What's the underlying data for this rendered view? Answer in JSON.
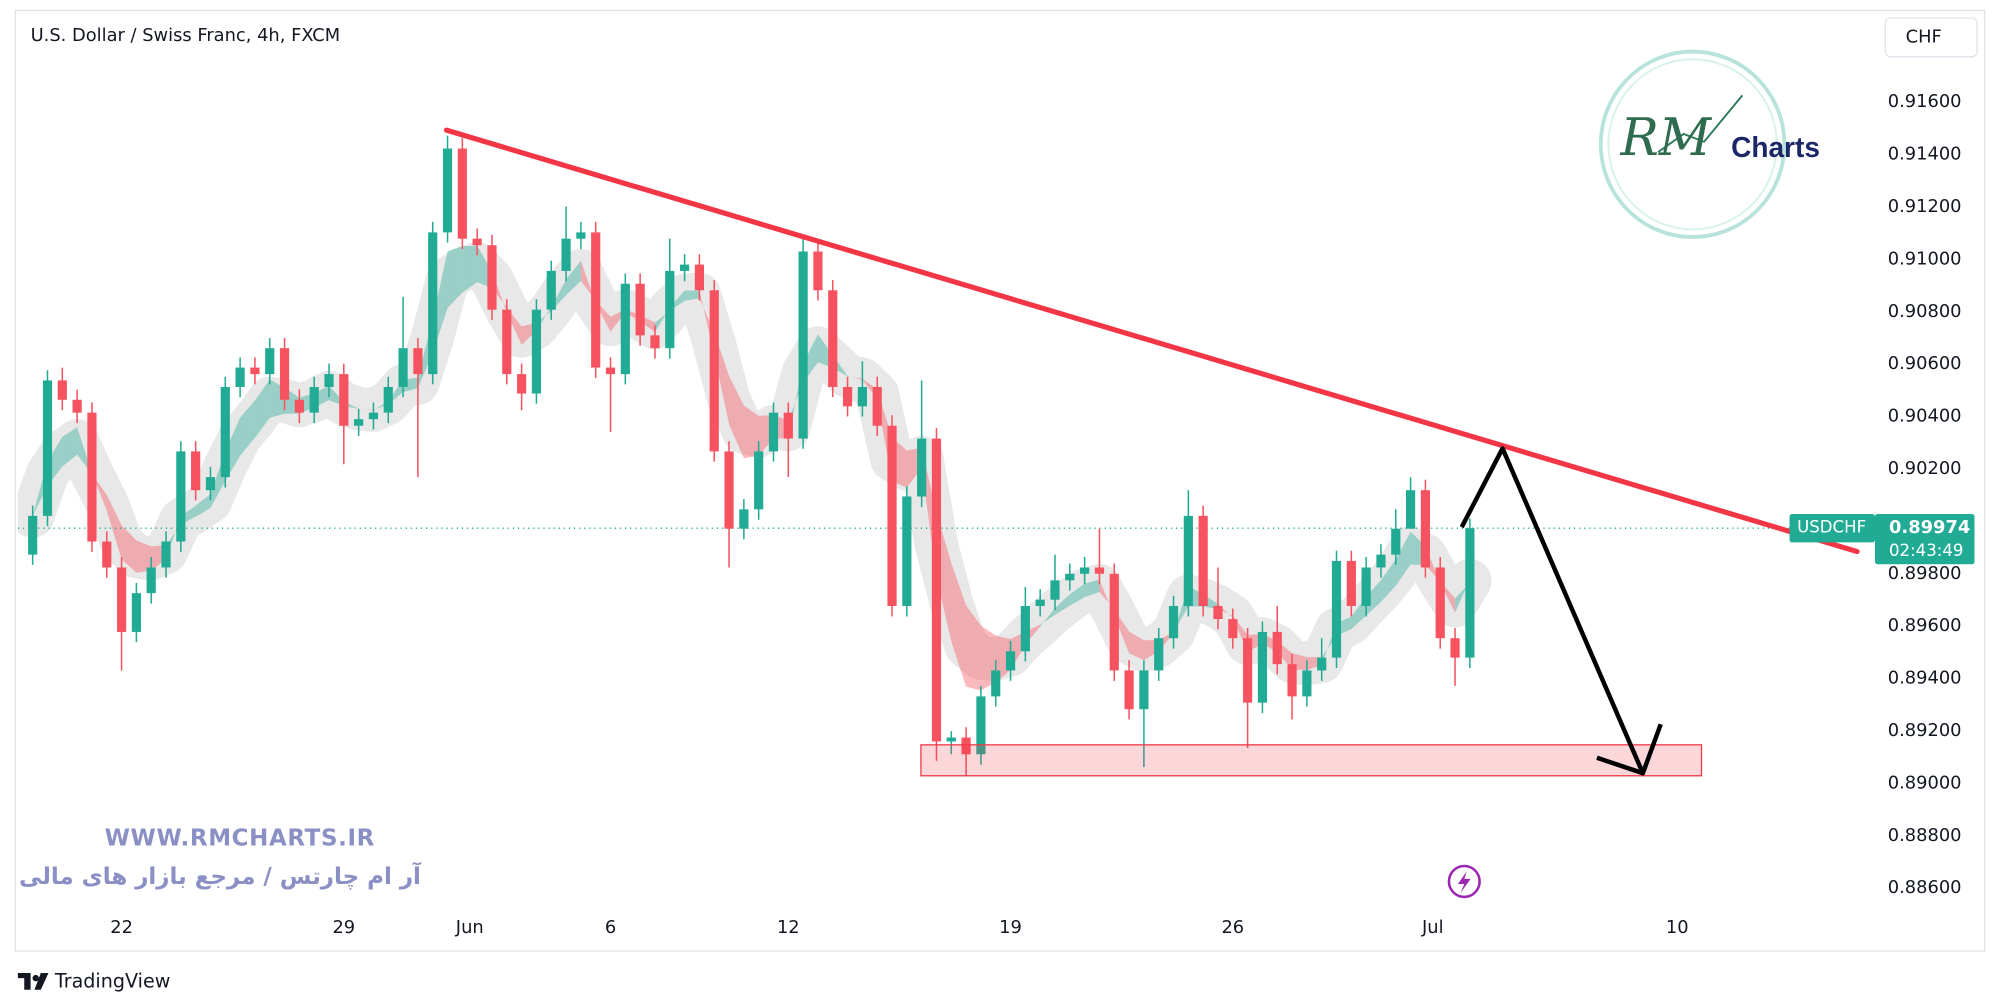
{
  "chart_data": {
    "type": "candlestick",
    "title": "U.S. Dollar / Swiss Franc, 4h, FXCM",
    "currency": "CHF",
    "symbol": "USDCHF",
    "countdown": "02:43:49",
    "up_color": "#22ab94",
    "down_color": "#f7525f",
    "grid": false,
    "xlim": [
      -1,
      124
    ],
    "xticks": [
      {
        "value": 6,
        "label": "22"
      },
      {
        "value": 21,
        "label": "29"
      },
      {
        "value": 29.5,
        "label": "Jun"
      },
      {
        "value": 39,
        "label": "6"
      },
      {
        "value": 51,
        "label": "12"
      },
      {
        "value": 66,
        "label": "19"
      },
      {
        "value": 81,
        "label": "26"
      },
      {
        "value": 94.5,
        "label": "Jul"
      },
      {
        "value": 111,
        "label": "10"
      }
    ],
    "ylim": [
      0.8836,
      0.9199
    ],
    "yticks": [
      {
        "value": 0.886,
        "label": "0.88600"
      },
      {
        "value": 0.888,
        "label": "0.88800"
      },
      {
        "value": 0.89,
        "label": "0.89000"
      },
      {
        "value": 0.892,
        "label": "0.89200"
      },
      {
        "value": 0.894,
        "label": "0.89400"
      },
      {
        "value": 0.896,
        "label": "0.89600"
      },
      {
        "value": 0.898,
        "label": "0.89800"
      },
      {
        "value": 0.902,
        "label": "0.90200"
      },
      {
        "value": 0.904,
        "label": "0.90400"
      },
      {
        "value": 0.906,
        "label": "0.90600"
      },
      {
        "value": 0.908,
        "label": "0.90800"
      },
      {
        "value": 0.91,
        "label": "0.91000"
      },
      {
        "value": 0.912,
        "label": "0.91200"
      },
      {
        "value": 0.914,
        "label": "0.91400"
      },
      {
        "value": 0.916,
        "label": "0.91600"
      }
    ],
    "ohlc": [
      [
        0.89873,
        0.9006,
        0.89834,
        0.90021
      ],
      [
        0.90021,
        0.90577,
        0.89982,
        0.90538
      ],
      [
        0.90538,
        0.90587,
        0.90424,
        0.90464
      ],
      [
        0.90464,
        0.90503,
        0.90375,
        0.90415
      ],
      [
        0.90415,
        0.90454,
        0.89883,
        0.89923
      ],
      [
        0.89923,
        0.89962,
        0.89785,
        0.89824
      ],
      [
        0.89824,
        0.89864,
        0.89431,
        0.89578
      ],
      [
        0.89578,
        0.89765,
        0.89539,
        0.89726
      ],
      [
        0.89726,
        0.89864,
        0.89686,
        0.89824
      ],
      [
        0.89824,
        0.89962,
        0.89785,
        0.89923
      ],
      [
        0.89923,
        0.90306,
        0.89883,
        0.90267
      ],
      [
        0.90267,
        0.90306,
        0.9008,
        0.90119
      ],
      [
        0.90119,
        0.90208,
        0.9008,
        0.90169
      ],
      [
        0.90169,
        0.90552,
        0.90129,
        0.90513
      ],
      [
        0.90513,
        0.90626,
        0.90474,
        0.90587
      ],
      [
        0.90587,
        0.90626,
        0.90523,
        0.90562
      ],
      [
        0.90562,
        0.907,
        0.90523,
        0.90661
      ],
      [
        0.90661,
        0.907,
        0.90424,
        0.90464
      ],
      [
        0.90464,
        0.90503,
        0.90375,
        0.90415
      ],
      [
        0.90415,
        0.90552,
        0.90375,
        0.90513
      ],
      [
        0.90513,
        0.90602,
        0.90474,
        0.90562
      ],
      [
        0.90562,
        0.90602,
        0.90218,
        0.90365
      ],
      [
        0.90365,
        0.90429,
        0.90326,
        0.9039
      ],
      [
        0.9039,
        0.90454,
        0.90351,
        0.90415
      ],
      [
        0.90415,
        0.90552,
        0.90375,
        0.90513
      ],
      [
        0.90513,
        0.90857,
        0.90474,
        0.90661
      ],
      [
        0.90661,
        0.907,
        0.90169,
        0.90562
      ],
      [
        0.90562,
        0.91143,
        0.90523,
        0.91103
      ],
      [
        0.91103,
        0.91472,
        0.91064,
        0.91423
      ],
      [
        0.91423,
        0.91463,
        0.91039,
        0.91079
      ],
      [
        0.91079,
        0.91118,
        0.91015,
        0.91054
      ],
      [
        0.91054,
        0.91094,
        0.90769,
        0.90808
      ],
      [
        0.90808,
        0.90848,
        0.90523,
        0.90562
      ],
      [
        0.90562,
        0.90602,
        0.90424,
        0.90488
      ],
      [
        0.90488,
        0.90848,
        0.90449,
        0.90808
      ],
      [
        0.90808,
        0.90995,
        0.90769,
        0.90956
      ],
      [
        0.90956,
        0.91202,
        0.90916,
        0.91079
      ],
      [
        0.91079,
        0.91143,
        0.91039,
        0.91103
      ],
      [
        0.91103,
        0.91143,
        0.90547,
        0.90587
      ],
      [
        0.90587,
        0.90626,
        0.90341,
        0.90562
      ],
      [
        0.90562,
        0.90946,
        0.90523,
        0.90907
      ],
      [
        0.90907,
        0.90946,
        0.9067,
        0.9071
      ],
      [
        0.9071,
        0.90749,
        0.90621,
        0.90661
      ],
      [
        0.90661,
        0.91079,
        0.90621,
        0.90956
      ],
      [
        0.90956,
        0.9102,
        0.90916,
        0.9098
      ],
      [
        0.9098,
        0.9102,
        0.90843,
        0.90882
      ],
      [
        0.90882,
        0.90921,
        0.90228,
        0.90267
      ],
      [
        0.90267,
        0.90306,
        0.89824,
        0.89972
      ],
      [
        0.89972,
        0.90085,
        0.89932,
        0.90046
      ],
      [
        0.90046,
        0.90306,
        0.90006,
        0.90267
      ],
      [
        0.90267,
        0.90454,
        0.90228,
        0.90415
      ],
      [
        0.90415,
        0.90454,
        0.90169,
        0.90316
      ],
      [
        0.90316,
        0.91079,
        0.90277,
        0.9103
      ],
      [
        0.9103,
        0.91069,
        0.90843,
        0.90882
      ],
      [
        0.90882,
        0.90921,
        0.90474,
        0.90513
      ],
      [
        0.90513,
        0.90552,
        0.904,
        0.90439
      ],
      [
        0.90439,
        0.90611,
        0.904,
        0.90513
      ],
      [
        0.90513,
        0.90552,
        0.90326,
        0.90365
      ],
      [
        0.90365,
        0.90405,
        0.89637,
        0.89677
      ],
      [
        0.89677,
        0.90134,
        0.89637,
        0.90095
      ],
      [
        0.90095,
        0.90538,
        0.90055,
        0.90316
      ],
      [
        0.90316,
        0.90356,
        0.89086,
        0.8916
      ],
      [
        0.8916,
        0.89199,
        0.89111,
        0.89175
      ],
      [
        0.89175,
        0.89214,
        0.89027,
        0.89111
      ],
      [
        0.89111,
        0.89372,
        0.89071,
        0.89332
      ],
      [
        0.89332,
        0.8947,
        0.89293,
        0.89431
      ],
      [
        0.89431,
        0.89544,
        0.89391,
        0.89504
      ],
      [
        0.89504,
        0.8975,
        0.89465,
        0.89677
      ],
      [
        0.89677,
        0.89741,
        0.89637,
        0.89701
      ],
      [
        0.89701,
        0.89873,
        0.89662,
        0.89775
      ],
      [
        0.89775,
        0.89839,
        0.89736,
        0.898
      ],
      [
        0.898,
        0.89864,
        0.8976,
        0.89824
      ],
      [
        0.89824,
        0.89972,
        0.8976,
        0.898
      ],
      [
        0.898,
        0.89839,
        0.89391,
        0.89431
      ],
      [
        0.89431,
        0.8947,
        0.89244,
        0.89283
      ],
      [
        0.89283,
        0.8947,
        0.89062,
        0.89431
      ],
      [
        0.89431,
        0.89593,
        0.89391,
        0.89554
      ],
      [
        0.89554,
        0.89716,
        0.89514,
        0.89677
      ],
      [
        0.89677,
        0.90119,
        0.89637,
        0.90021
      ],
      [
        0.90021,
        0.9006,
        0.89637,
        0.89677
      ],
      [
        0.89677,
        0.89824,
        0.89588,
        0.89627
      ],
      [
        0.89627,
        0.89667,
        0.89514,
        0.89554
      ],
      [
        0.89554,
        0.89593,
        0.89135,
        0.89308
      ],
      [
        0.89308,
        0.89618,
        0.89268,
        0.89578
      ],
      [
        0.89578,
        0.89677,
        0.89416,
        0.89455
      ],
      [
        0.89455,
        0.89495,
        0.89244,
        0.89332
      ],
      [
        0.89332,
        0.8947,
        0.89293,
        0.89431
      ],
      [
        0.89431,
        0.89554,
        0.89391,
        0.8948
      ],
      [
        0.8948,
        0.89888,
        0.8944,
        0.89849
      ],
      [
        0.89849,
        0.89888,
        0.89637,
        0.89677
      ],
      [
        0.89677,
        0.89864,
        0.89637,
        0.89824
      ],
      [
        0.89824,
        0.89913,
        0.89785,
        0.89873
      ],
      [
        0.89873,
        0.90046,
        0.89834,
        0.89972
      ],
      [
        0.89972,
        0.90169,
        0.89982,
        0.90119
      ],
      [
        0.90119,
        0.90159,
        0.89785,
        0.89824
      ],
      [
        0.89824,
        0.89864,
        0.89514,
        0.89554
      ],
      [
        0.89554,
        0.89593,
        0.89372,
        0.8948
      ],
      [
        0.8948,
        0.90011,
        0.8944,
        0.89974
      ]
    ],
    "watermark": {
      "url": "WWW.RMCHARTS.IR",
      "tagline": "آر ام چارتس / مرجع بازار های مالی"
    },
    "logo": {
      "mark": "RM",
      "name": "Charts"
    },
    "footer": "TradingView"
  }
}
